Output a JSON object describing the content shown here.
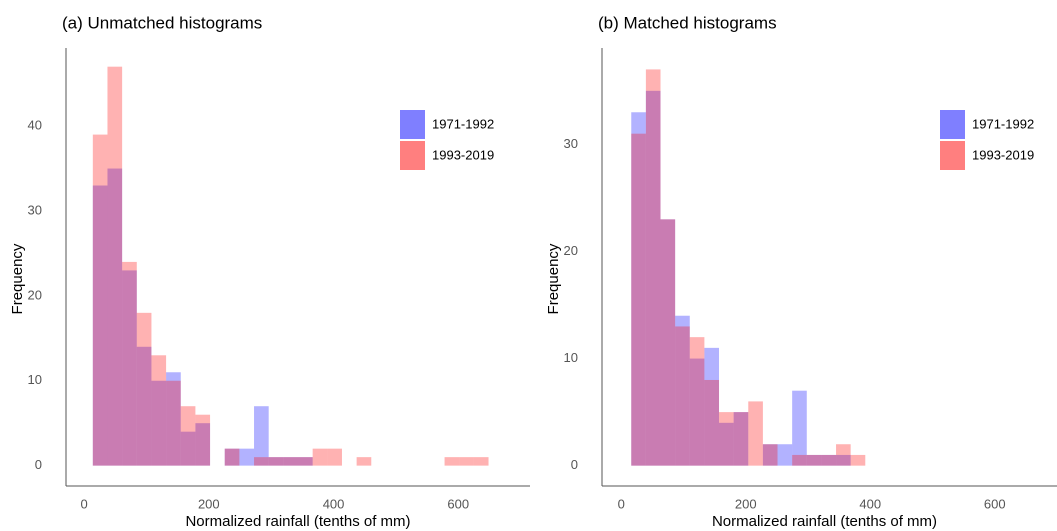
{
  "chart_data": [
    {
      "type": "histogram",
      "title": "(a) Unmatched histograms",
      "xlabel": "Normalized rainfall (tenths of mm)",
      "ylabel": "Frequency",
      "bins": [
        14,
        37.5,
        61,
        84.5,
        108,
        131.5,
        155,
        178.5,
        202,
        225.5,
        249,
        272.5,
        296,
        319.5,
        343,
        366.5,
        390,
        413.5,
        437,
        460.5,
        484,
        507.5,
        531,
        554.5,
        578,
        601.5,
        625,
        648.5
      ],
      "series": [
        {
          "name": "1971-1992",
          "color": "#0000ff",
          "values": [
            33,
            35,
            23,
            14,
            10,
            11,
            4,
            5,
            0,
            2,
            2,
            7,
            1,
            1,
            1,
            0,
            0,
            0,
            0,
            0,
            0,
            0,
            0,
            0,
            0,
            0,
            0
          ]
        },
        {
          "name": "1993-2019",
          "color": "#ff0000",
          "values": [
            39,
            47,
            24,
            18,
            13,
            10,
            7,
            6,
            0,
            2,
            0,
            1,
            1,
            1,
            1,
            2,
            2,
            0,
            1,
            0,
            0,
            0,
            0,
            0,
            1,
            1,
            1
          ]
        }
      ],
      "xlim": [
        -29,
        715
      ],
      "ylim": [
        -2.4,
        49.2
      ],
      "xticks": [
        0,
        200,
        400,
        600
      ],
      "yticks": [
        0,
        10,
        20,
        30,
        40
      ]
    },
    {
      "type": "histogram",
      "title": "(b) Matched histograms",
      "xlabel": "Normalized rainfall (tenths of mm)",
      "ylabel": "Frequency",
      "bins": [
        16,
        39.5,
        63,
        86.5,
        110,
        133.5,
        157,
        180.5,
        204,
        227.5,
        251,
        274.5,
        298,
        321.5,
        345,
        368.5,
        392
      ],
      "series": [
        {
          "name": "1971-1992",
          "color": "#0000ff",
          "values": [
            33,
            35,
            23,
            14,
            10,
            11,
            4,
            5,
            0,
            2,
            2,
            7,
            1,
            1,
            1,
            0
          ]
        },
        {
          "name": "1993-2019",
          "color": "#ff0000",
          "values": [
            31,
            37,
            23,
            13,
            12,
            8,
            5,
            5,
            6,
            2,
            0,
            1,
            1,
            1,
            2,
            1
          ]
        }
      ],
      "xlim": [
        -31,
        700
      ],
      "ylim": [
        -1.9,
        39
      ],
      "xticks": [
        0,
        200,
        400,
        600
      ],
      "yticks": [
        0,
        10,
        20,
        30
      ]
    }
  ]
}
